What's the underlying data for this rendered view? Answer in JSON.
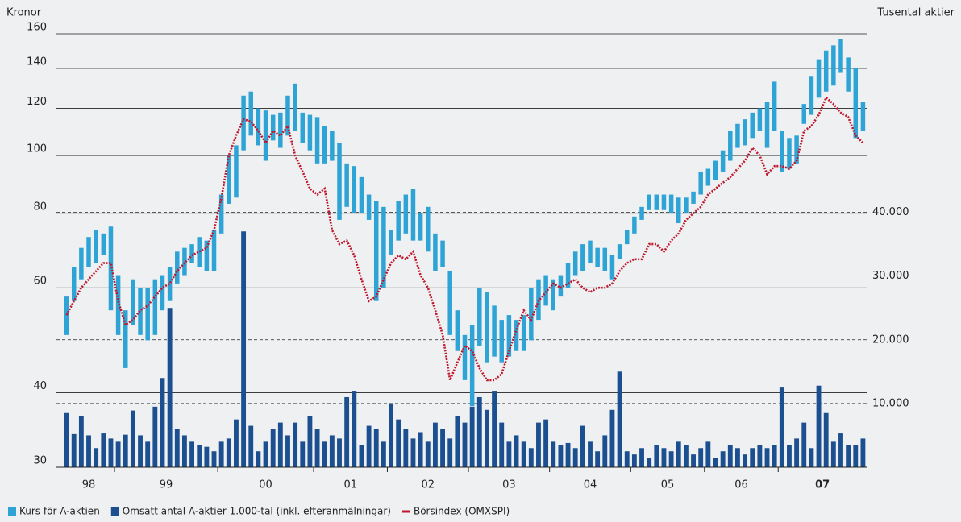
{
  "chart_data": {
    "type": "combo",
    "ylabel": "Kronor",
    "y2label": "Tusental aktier",
    "ylim": [
      30,
      160
    ],
    "yscale": "log",
    "yticks": [
      30,
      40,
      60,
      80,
      100,
      120,
      140,
      160
    ],
    "y2lim": [
      0,
      68000
    ],
    "y2ticks": [
      {
        "value": 10000,
        "label": "10.000"
      },
      {
        "value": 20000,
        "label": "20.000"
      },
      {
        "value": 30000,
        "label": "30.000"
      },
      {
        "value": 40000,
        "label": "40.000"
      }
    ],
    "years": [
      {
        "label": "98",
        "count": 7
      },
      {
        "label": "99",
        "count": 14
      },
      {
        "label": "00",
        "count": 13
      },
      {
        "label": "01",
        "count": 10
      },
      {
        "label": "02",
        "count": 11
      },
      {
        "label": "03",
        "count": 11
      },
      {
        "label": "04",
        "count": 11
      },
      {
        "label": "05",
        "count": 10
      },
      {
        "label": "06",
        "count": 10
      },
      {
        "label": "07",
        "count": 12,
        "bold": true
      }
    ],
    "series": [
      {
        "name": "Kurs för A-aktien",
        "color": "#2ea3d5",
        "kind": "range",
        "high": [
          58,
          65,
          70,
          73,
          75,
          74,
          76,
          63,
          55,
          62,
          60,
          60,
          62,
          63,
          65,
          69,
          70,
          71,
          73,
          72,
          75,
          86,
          100,
          104,
          126,
          128,
          120,
          119,
          117,
          118,
          126,
          132,
          118,
          117,
          116,
          112,
          110,
          105,
          97,
          96,
          92,
          86,
          84,
          82,
          75,
          84,
          86,
          88,
          80,
          82,
          74,
          72,
          64,
          55,
          50,
          52,
          60,
          59,
          56,
          53,
          54,
          53,
          54,
          60,
          62,
          63,
          62,
          63,
          66,
          69,
          71,
          72,
          70,
          70,
          68,
          71,
          75,
          79,
          82,
          86,
          86,
          86,
          86,
          85,
          85,
          87,
          94,
          95,
          98,
          102,
          110,
          113,
          115,
          118,
          120,
          123,
          133,
          110,
          107,
          108,
          122,
          136,
          145,
          150,
          153,
          157,
          146,
          140,
          123
        ],
        "low": [
          50,
          57,
          62,
          65,
          66,
          68,
          55,
          50,
          44,
          52,
          50,
          49,
          50,
          55,
          57,
          61,
          63,
          66,
          65,
          64,
          64,
          74,
          83,
          85,
          102,
          108,
          104,
          98,
          106,
          103,
          108,
          110,
          105,
          102,
          97,
          97,
          98,
          78,
          82,
          80,
          80,
          78,
          57,
          60,
          68,
          72,
          74,
          72,
          72,
          69,
          64,
          65,
          50,
          47,
          42,
          38,
          48,
          45,
          46,
          45,
          46,
          47,
          47,
          49,
          53,
          56,
          55,
          58,
          60,
          63,
          64,
          66,
          65,
          64,
          62,
          67,
          71,
          74,
          78,
          81,
          81,
          81,
          80,
          77,
          80,
          83,
          86,
          89,
          91,
          94,
          98,
          103,
          104,
          107,
          110,
          103,
          110,
          94,
          95,
          97,
          113,
          117,
          125,
          128,
          131,
          138,
          128,
          107,
          110
        ]
      },
      {
        "name": "Omsatt antal A-aktier 1.000-tal (inkl. efteranmälningar)",
        "color": "#1b4f8f",
        "kind": "bar",
        "axis": "y2",
        "values": [
          8500,
          5200,
          8000,
          5000,
          3000,
          5300,
          4500,
          4000,
          5100,
          8900,
          5000,
          4000,
          9500,
          14000,
          25000,
          6000,
          5000,
          4000,
          3500,
          3200,
          2500,
          4000,
          4500,
          7500,
          37000,
          6500,
          2500,
          4000,
          6000,
          7000,
          5000,
          7000,
          4000,
          8000,
          6000,
          4000,
          5000,
          4500,
          11000,
          12000,
          3500,
          6500,
          6000,
          4000,
          10000,
          7500,
          6000,
          4500,
          5500,
          4000,
          7000,
          6000,
          4500,
          8000,
          7000,
          9500,
          11000,
          9000,
          12000,
          7000,
          4000,
          5000,
          4000,
          3000,
          7000,
          7500,
          4000,
          3500,
          3800,
          3000,
          6500,
          4000,
          2500,
          5000,
          9000,
          15000,
          2500,
          2000,
          3000,
          1500,
          3500,
          3000,
          2500,
          4000,
          3500,
          2000,
          3000,
          4000,
          1500,
          2500,
          3500,
          3000,
          2000,
          3000,
          3500,
          3000,
          3500,
          12500,
          3500,
          4500,
          7000,
          3000,
          12800,
          8500,
          4000,
          5300,
          3500,
          3500,
          4500
        ]
      },
      {
        "name": "Börsindex (OMXSPI)",
        "color": "#c0172c",
        "kind": "line",
        "values": [
          54,
          57,
          60,
          62,
          64,
          66,
          66,
          57,
          52,
          53,
          55,
          56,
          58,
          60,
          61,
          64,
          66,
          68,
          69,
          70,
          75,
          85,
          100,
          108,
          115,
          114,
          110,
          105,
          110,
          108,
          112,
          100,
          94,
          88,
          86,
          88,
          75,
          71,
          72,
          68,
          62,
          57,
          58,
          62,
          66,
          68,
          67,
          69,
          63,
          60,
          55,
          50,
          42,
          45,
          48,
          47,
          44,
          42,
          42,
          43,
          47,
          51,
          55,
          53,
          57,
          59,
          61,
          60,
          61,
          62,
          60,
          59,
          60,
          60,
          61,
          64,
          66,
          67,
          67,
          71,
          71,
          69,
          72,
          74,
          78,
          80,
          82,
          86,
          88,
          90,
          92,
          95,
          98,
          103,
          100,
          93,
          96,
          96,
          95,
          98,
          110,
          112,
          117,
          125,
          122,
          118,
          116,
          108,
          105
        ]
      }
    ]
  }
}
